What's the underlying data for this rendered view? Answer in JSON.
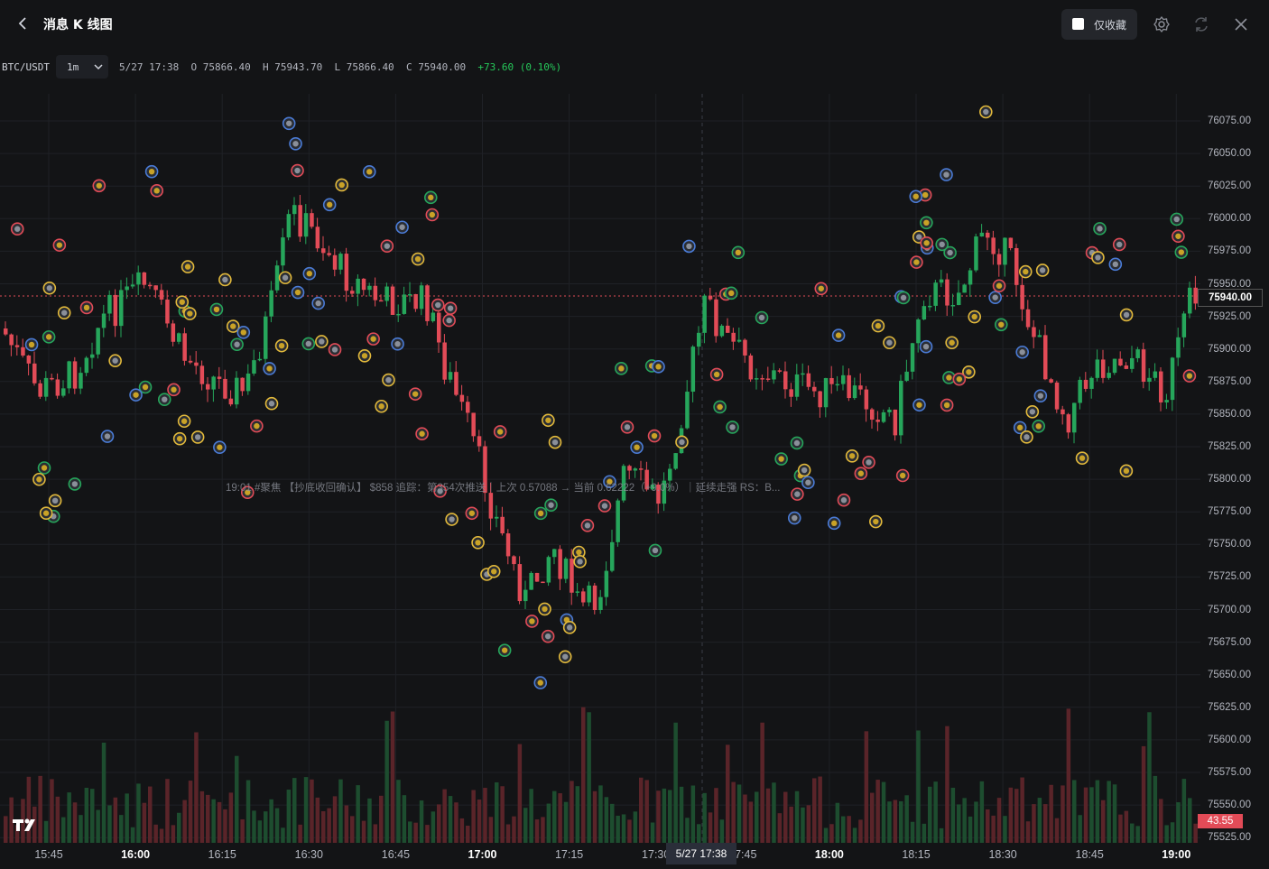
{
  "header": {
    "title": "消息 K 线图",
    "favorites_label": "仅收藏",
    "icons": [
      "chevron-left-icon",
      "gear-icon",
      "refresh-icon",
      "close-icon"
    ]
  },
  "symbol": {
    "pair": "BTC/USDT",
    "interval": "1m",
    "datetime": "5/27 17:38",
    "open_label": "O",
    "open": "75866.40",
    "high_label": "H",
    "high": "75943.70",
    "low_label": "L",
    "low": "75866.40",
    "close_label": "C",
    "close": "75940.00",
    "change": "+73.60 (0.10%)"
  },
  "price_axis": {
    "ticks": [
      "76075.00",
      "76050.00",
      "76025.00",
      "76000.00",
      "75975.00",
      "75950.00",
      "75925.00",
      "75900.00",
      "75875.00",
      "75850.00",
      "75825.00",
      "75800.00",
      "75775.00",
      "75750.00",
      "75725.00",
      "75700.00",
      "75675.00",
      "75650.00",
      "75625.00",
      "75600.00",
      "75575.00",
      "75550.00",
      "75525.00"
    ],
    "current": "75940.00",
    "volume_value": "43.55"
  },
  "time_axis": {
    "ticks": [
      {
        "label": "15:45",
        "bold": false
      },
      {
        "label": "16:00",
        "bold": true
      },
      {
        "label": "16:15",
        "bold": false
      },
      {
        "label": "16:30",
        "bold": false
      },
      {
        "label": "16:45",
        "bold": false
      },
      {
        "label": "17:00",
        "bold": true
      },
      {
        "label": "17:15",
        "bold": false
      },
      {
        "label": "17:30",
        "bold": false
      },
      {
        "label": "17:45",
        "bold": false
      },
      {
        "label": "18:00",
        "bold": true
      },
      {
        "label": "18:15",
        "bold": false
      },
      {
        "label": "18:30",
        "bold": false
      },
      {
        "label": "18:45",
        "bold": false
      },
      {
        "label": "19:00",
        "bold": true
      }
    ],
    "crosshair": "5/27 17:38"
  },
  "news_tooltip": "19:01 #聚焦  【抄底收回确认】 $858 追踪：第354次推送｜上次 0.57088 → 当前 0.62222（+9.0%）｜延续走强 RS：B...",
  "colors": {
    "up": "#26a65b",
    "down": "#e24b57",
    "accent": "#e2b93b",
    "background": "#131416"
  }
}
